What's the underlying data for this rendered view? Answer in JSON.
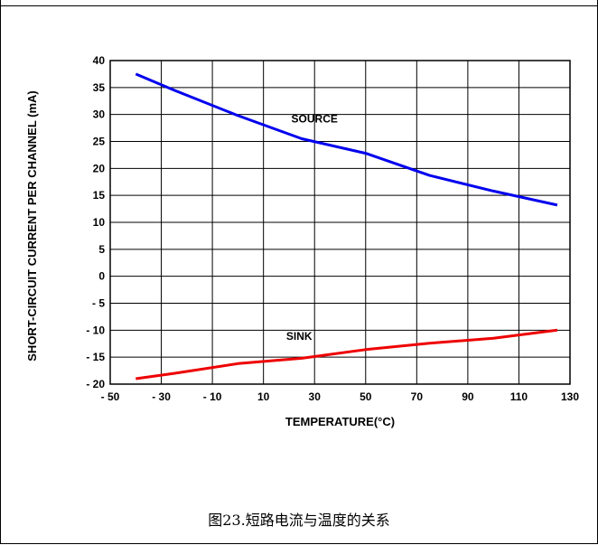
{
  "chart_data": {
    "type": "line",
    "xlabel": "TEMPERATURE(°C)",
    "ylabel": "SHORT-CIRCUIT CURRENT PER CHANNEL (mA)",
    "xlim": [
      -50,
      130
    ],
    "ylim": [
      -20,
      40
    ],
    "x_ticks": [
      -50,
      -30,
      -10,
      10,
      30,
      50,
      70,
      90,
      110,
      130
    ],
    "x_tick_labels": [
      "- 50",
      "- 30",
      "- 10",
      "10",
      "30",
      "50",
      "70",
      "90",
      "110",
      "130"
    ],
    "y_ticks": [
      40,
      35,
      30,
      25,
      20,
      15,
      10,
      5,
      0,
      -5,
      -10,
      -15,
      -20
    ],
    "y_tick_labels": [
      "40",
      "35",
      "30",
      "25",
      "20",
      "15",
      "10",
      "5",
      "0",
      "- 5",
      "- 10",
      "- 15",
      "- 20"
    ],
    "grid": true,
    "series": [
      {
        "name": "SOURCE",
        "color": "#0000ee",
        "x": [
          -40,
          -25,
          0,
          25,
          50,
          75,
          100,
          125
        ],
        "y": [
          37.5,
          34.5,
          29.8,
          25.5,
          22.8,
          18.7,
          15.8,
          13.2
        ]
      },
      {
        "name": "SINK",
        "color": "#ee0000",
        "x": [
          -40,
          -25,
          0,
          25,
          50,
          75,
          100,
          125
        ],
        "y": [
          -19.0,
          -18.0,
          -16.2,
          -15.2,
          -13.6,
          -12.4,
          -11.5,
          -10.0
        ]
      }
    ]
  },
  "caption": "图23.短路电流与温度的关系"
}
